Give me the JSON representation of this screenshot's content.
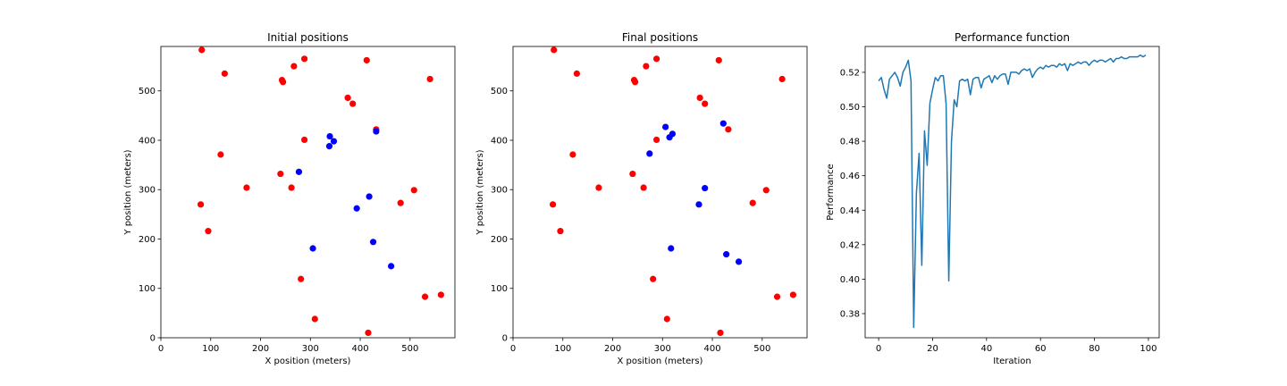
{
  "chart_data": [
    {
      "type": "scatter",
      "title": "Initial positions",
      "xlabel": "X position (meters)",
      "ylabel": "Y position (meters)",
      "xlim": [
        0,
        590
      ],
      "ylim": [
        0,
        590
      ],
      "xticks": [
        0,
        100,
        200,
        300,
        400,
        500
      ],
      "yticks": [
        0,
        100,
        200,
        300,
        400,
        500
      ],
      "grid": false,
      "series": [
        {
          "color": "#ff0000",
          "points": [
            [
              82,
              583
            ],
            [
              128,
              535
            ],
            [
              243,
              522
            ],
            [
              245,
              518
            ],
            [
              267,
              550
            ],
            [
              288,
              565
            ],
            [
              413,
              562
            ],
            [
              540,
              524
            ],
            [
              375,
              486
            ],
            [
              385,
              474
            ],
            [
              432,
              422
            ],
            [
              288,
              401
            ],
            [
              120,
              371
            ],
            [
              240,
              332
            ],
            [
              172,
              304
            ],
            [
              262,
              304
            ],
            [
              508,
              299
            ],
            [
              481,
              273
            ],
            [
              80,
              270
            ],
            [
              95,
              216
            ],
            [
              281,
              119
            ],
            [
              530,
              83
            ],
            [
              562,
              87
            ],
            [
              309,
              38
            ],
            [
              416,
              10
            ]
          ]
        },
        {
          "color": "#0000ff",
          "points": [
            [
              339,
              408
            ],
            [
              347,
              398
            ],
            [
              338,
              388
            ],
            [
              432,
              418
            ],
            [
              277,
              336
            ],
            [
              418,
              286
            ],
            [
              393,
              262
            ],
            [
              305,
              181
            ],
            [
              426,
              194
            ],
            [
              462,
              145
            ]
          ]
        }
      ]
    },
    {
      "type": "scatter",
      "title": "Final positions",
      "xlabel": "X position (meters)",
      "ylabel": "Y position (meters)",
      "xlim": [
        0,
        590
      ],
      "ylim": [
        0,
        590
      ],
      "xticks": [
        0,
        100,
        200,
        300,
        400,
        500
      ],
      "yticks": [
        0,
        100,
        200,
        300,
        400,
        500
      ],
      "grid": false,
      "series": [
        {
          "color": "#ff0000",
          "points": [
            [
              82,
              583
            ],
            [
              128,
              535
            ],
            [
              243,
              522
            ],
            [
              245,
              518
            ],
            [
              267,
              550
            ],
            [
              288,
              565
            ],
            [
              413,
              562
            ],
            [
              540,
              524
            ],
            [
              375,
              486
            ],
            [
              385,
              474
            ],
            [
              432,
              422
            ],
            [
              288,
              401
            ],
            [
              120,
              371
            ],
            [
              240,
              332
            ],
            [
              172,
              304
            ],
            [
              262,
              304
            ],
            [
              508,
              299
            ],
            [
              481,
              273
            ],
            [
              80,
              270
            ],
            [
              95,
              216
            ],
            [
              281,
              119
            ],
            [
              530,
              83
            ],
            [
              562,
              87
            ],
            [
              309,
              38
            ],
            [
              416,
              10
            ]
          ]
        },
        {
          "color": "#0000ff",
          "points": [
            [
              306,
              427
            ],
            [
              320,
              413
            ],
            [
              314,
              406
            ],
            [
              274,
              373
            ],
            [
              422,
              434
            ],
            [
              385,
              303
            ],
            [
              373,
              270
            ],
            [
              317,
              181
            ],
            [
              428,
              169
            ],
            [
              453,
              154
            ]
          ]
        }
      ]
    },
    {
      "type": "line",
      "title": "Performance function",
      "xlabel": "Iteration",
      "ylabel": "Performance",
      "xlim": [
        -5,
        104
      ],
      "ylim": [
        0.366,
        0.535
      ],
      "xticks": [
        0,
        20,
        40,
        60,
        80,
        100
      ],
      "yticks": [
        0.38,
        0.4,
        0.42,
        0.44,
        0.46,
        0.48,
        0.5,
        0.52
      ],
      "ytick_labels": [
        "0.38",
        "0.40",
        "0.42",
        "0.44",
        "0.46",
        "0.48",
        "0.50",
        "0.52"
      ],
      "grid": false,
      "series": [
        {
          "color": "#1f77b4",
          "x": [
            0,
            1,
            2,
            3,
            4,
            5,
            6,
            7,
            8,
            9,
            10,
            11,
            12,
            13,
            14,
            15,
            16,
            17,
            18,
            19,
            20,
            21,
            22,
            23,
            24,
            25,
            26,
            27,
            28,
            29,
            30,
            31,
            32,
            33,
            34,
            35,
            36,
            37,
            38,
            39,
            40,
            41,
            42,
            43,
            44,
            45,
            46,
            47,
            48,
            49,
            50,
            51,
            52,
            53,
            54,
            55,
            56,
            57,
            58,
            59,
            60,
            61,
            62,
            63,
            64,
            65,
            66,
            67,
            68,
            69,
            70,
            71,
            72,
            73,
            74,
            75,
            76,
            77,
            78,
            79,
            80,
            81,
            82,
            83,
            84,
            85,
            86,
            87,
            88,
            89,
            90,
            91,
            92,
            93,
            94,
            95,
            96,
            97,
            98,
            99
          ],
          "y": [
            0.515,
            0.517,
            0.51,
            0.505,
            0.516,
            0.518,
            0.52,
            0.517,
            0.512,
            0.52,
            0.523,
            0.527,
            0.515,
            0.372,
            0.45,
            0.473,
            0.408,
            0.486,
            0.466,
            0.502,
            0.51,
            0.517,
            0.515,
            0.518,
            0.518,
            0.502,
            0.399,
            0.48,
            0.504,
            0.5,
            0.515,
            0.516,
            0.515,
            0.516,
            0.507,
            0.516,
            0.517,
            0.517,
            0.511,
            0.516,
            0.517,
            0.518,
            0.514,
            0.518,
            0.516,
            0.518,
            0.519,
            0.519,
            0.513,
            0.52,
            0.52,
            0.52,
            0.519,
            0.521,
            0.522,
            0.521,
            0.522,
            0.517,
            0.52,
            0.522,
            0.523,
            0.522,
            0.524,
            0.523,
            0.524,
            0.524,
            0.523,
            0.525,
            0.524,
            0.525,
            0.521,
            0.525,
            0.524,
            0.525,
            0.526,
            0.525,
            0.526,
            0.526,
            0.524,
            0.526,
            0.527,
            0.526,
            0.527,
            0.527,
            0.526,
            0.527,
            0.528,
            0.526,
            0.528,
            0.528,
            0.529,
            0.528,
            0.528,
            0.529,
            0.529,
            0.529,
            0.529,
            0.53,
            0.529,
            0.53
          ]
        }
      ]
    }
  ]
}
